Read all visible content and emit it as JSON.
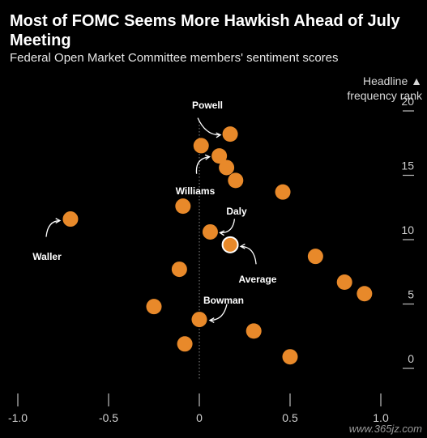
{
  "header": {
    "title": "Most of FOMC Seems More Hawkish Ahead of July Meeting",
    "subtitle": "Federal Open Market Committee members' sentiment scores"
  },
  "watermark": "www.365jz.com",
  "chart_data": {
    "type": "scatter",
    "title": "Most of FOMC Seems More Hawkish Ahead of July Meeting",
    "subtitle": "Federal Open Market Committee members' sentiment scores",
    "xlabel": "",
    "ylabel": "Headline ▲ frequency rank",
    "ylabel_lines": [
      "Headline ▲",
      "frequency rank"
    ],
    "xlim": [
      -1.0,
      1.0
    ],
    "ylim": [
      -0.5,
      20.5
    ],
    "x_ticks": [
      -1.0,
      -0.5,
      0,
      0.5,
      1.0
    ],
    "x_tick_labels": [
      "-1.0",
      "-0.5",
      "0",
      "0.5",
      "1.0"
    ],
    "y_ticks": [
      0,
      5,
      10,
      15,
      20
    ],
    "y_tick_labels": [
      "0",
      "5",
      "10",
      "15",
      "20"
    ],
    "zero_line": "dotted vertical at x = 0",
    "grid": false,
    "marker_color": "#e8892a",
    "highlight_color": "#ffffff",
    "points": [
      {
        "x": 0.17,
        "y": 18.2
      },
      {
        "x": 0.01,
        "y": 17.3
      },
      {
        "x": 0.11,
        "y": 16.5
      },
      {
        "x": 0.15,
        "y": 15.6
      },
      {
        "x": 0.2,
        "y": 14.6
      },
      {
        "x": 0.46,
        "y": 13.7
      },
      {
        "x": -0.09,
        "y": 12.6
      },
      {
        "x": -0.71,
        "y": 11.6
      },
      {
        "x": 0.06,
        "y": 10.6
      },
      {
        "x": 0.17,
        "y": 9.6
      },
      {
        "x": 0.64,
        "y": 8.7
      },
      {
        "x": -0.11,
        "y": 7.7
      },
      {
        "x": 0.8,
        "y": 6.7
      },
      {
        "x": 0.91,
        "y": 5.8
      },
      {
        "x": -0.25,
        "y": 4.8
      },
      {
        "x": 0.0,
        "y": 3.8
      },
      {
        "x": 0.3,
        "y": 2.9
      },
      {
        "x": -0.08,
        "y": 1.9
      },
      {
        "x": 0.5,
        "y": 0.9
      }
    ],
    "highlight_index": 9,
    "annotations": [
      {
        "label": "Powell",
        "point": 0
      },
      {
        "label": "Williams",
        "point": 2
      },
      {
        "label": "Waller",
        "point": 7
      },
      {
        "label": "Daly",
        "point": 8
      },
      {
        "label": "Average",
        "point": 9
      },
      {
        "label": "Bowman",
        "point": 15
      }
    ]
  }
}
